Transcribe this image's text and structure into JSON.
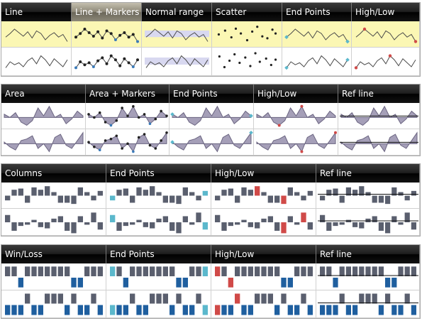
{
  "colors": {
    "line": "#4a4a4a",
    "marker": "#222222",
    "marker_low_blue": "#3a7ab8",
    "end_point": "#5bb8cc",
    "high_low": "#d04a48",
    "area_fill": "#a59fb8",
    "area_stroke": "#6a6480",
    "column": "#5a5f6e",
    "win": "#1f5f9f",
    "loss": "#5a5f6e",
    "selected_row": "#fbf7b4",
    "normal_range": "#d8d8f0"
  },
  "series": {
    "a": [
      0.35,
      0.55,
      0.8,
      0.6,
      0.4,
      0.65,
      0.3,
      0.7,
      0.55,
      0.2,
      0.45,
      0.6,
      0.35,
      0.5,
      0.1
    ],
    "b": [
      0.2,
      0.5,
      0.35,
      0.45,
      0.25,
      0.55,
      0.7,
      0.4,
      0.8,
      0.6,
      0.3,
      0.65,
      0.45,
      0.25,
      0.6
    ],
    "c": [
      0.55,
      0.45,
      0.6,
      0.3,
      0.2,
      0.35,
      0.75,
      0.5,
      0.8,
      0.45,
      0.55,
      0.25,
      0.4,
      0.65,
      0.5
    ],
    "d": [
      0.5,
      0.35,
      0.25,
      0.55,
      0.6,
      0.7,
      0.3,
      0.45,
      0.2,
      0.65,
      0.75,
      0.4,
      0.3,
      0.55,
      0.8
    ],
    "scatter1": [
      [
        0.05,
        0.5
      ],
      [
        0.15,
        0.7
      ],
      [
        0.25,
        0.35
      ],
      [
        0.32,
        0.8
      ],
      [
        0.4,
        0.55
      ],
      [
        0.5,
        0.2
      ],
      [
        0.58,
        0.65
      ],
      [
        0.66,
        0.9
      ],
      [
        0.74,
        0.4
      ],
      [
        0.82,
        0.3
      ],
      [
        0.9,
        0.75
      ],
      [
        0.95,
        0.55
      ]
    ],
    "scatter2": [
      [
        0.06,
        0.75
      ],
      [
        0.14,
        0.25
      ],
      [
        0.22,
        0.55
      ],
      [
        0.3,
        0.85
      ],
      [
        0.38,
        0.45
      ],
      [
        0.47,
        0.7
      ],
      [
        0.55,
        0.3
      ],
      [
        0.63,
        0.9
      ],
      [
        0.7,
        0.5
      ],
      [
        0.8,
        0.65
      ],
      [
        0.88,
        0.35
      ],
      [
        0.95,
        0.6
      ]
    ],
    "colA": [
      -0.2,
      0.25,
      0.3,
      -0.3,
      0.35,
      0.25,
      0.4,
      0.15,
      -0.3,
      -0.3,
      -0.35,
      0.35,
      0.15,
      -0.2,
      0.2
    ],
    "colB": [
      0.3,
      -0.35,
      -0.15,
      -0.1,
      0.1,
      -0.2,
      -0.25,
      0.15,
      0.25,
      -0.35,
      -0.45,
      0.25,
      -0.1,
      0.4,
      -0.3
    ],
    "wlA": [
      1,
      1,
      -1,
      1,
      1,
      1,
      1,
      1,
      1,
      1,
      -1,
      -1,
      1,
      1,
      1
    ],
    "wlB": [
      -1,
      -1,
      -1,
      1,
      -1,
      -1,
      1,
      1,
      1,
      -1,
      1,
      -1,
      -1,
      1,
      -1
    ]
  },
  "panels": [
    {
      "id": "line",
      "columns": [
        {
          "label": "Line",
          "type": "line",
          "selected": false
        },
        {
          "label": "Line + Markers",
          "type": "line-markers",
          "selected": true
        },
        {
          "label": "Normal range",
          "type": "normal-range",
          "selected": false
        },
        {
          "label": "Scatter",
          "type": "scatter",
          "selected": false
        },
        {
          "label": "End Points",
          "type": "line-end",
          "selected": false
        },
        {
          "label": "High/Low",
          "type": "line-highlow",
          "selected": false
        }
      ]
    },
    {
      "id": "area",
      "columns": [
        {
          "label": "Area",
          "type": "area"
        },
        {
          "label": "Area + Markers",
          "type": "area-markers"
        },
        {
          "label": "End Points",
          "type": "area-end"
        },
        {
          "label": "High/Low",
          "type": "area-highlow"
        },
        {
          "label": "Ref line",
          "type": "area-ref"
        }
      ]
    },
    {
      "id": "columns",
      "columns": [
        {
          "label": "Columns",
          "type": "col"
        },
        {
          "label": "End Points",
          "type": "col-end"
        },
        {
          "label": "High/Low",
          "type": "col-highlow"
        },
        {
          "label": "Ref line",
          "type": "col-ref"
        }
      ]
    },
    {
      "id": "winloss",
      "columns": [
        {
          "label": "Win/Loss",
          "type": "wl"
        },
        {
          "label": "End Points",
          "type": "wl-end"
        },
        {
          "label": "High/Low",
          "type": "wl-highlow"
        },
        {
          "label": "Ref line",
          "type": "wl-ref"
        }
      ]
    }
  ]
}
